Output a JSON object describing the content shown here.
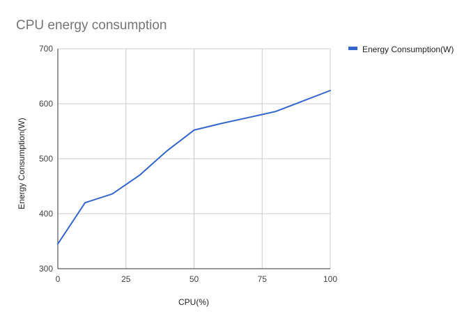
{
  "chart_data": {
    "type": "line",
    "title": "CPU energy consumption",
    "xlabel": "CPU(%)",
    "ylabel": "Energy Consumption(W)",
    "xlim": [
      0,
      100
    ],
    "ylim": [
      300,
      700
    ],
    "x_ticks": [
      0,
      25,
      50,
      75,
      100
    ],
    "y_ticks": [
      300,
      400,
      500,
      600,
      700
    ],
    "x_tick_labels": [
      "0",
      "25",
      "50",
      "75",
      "100"
    ],
    "y_tick_labels": [
      "300",
      "400",
      "500",
      "600",
      "700"
    ],
    "grid": true,
    "legend_position": "right",
    "series": [
      {
        "name": "Energy Consumption(W)",
        "color": "#3366cc",
        "x": [
          0,
          10,
          20,
          30,
          40,
          50,
          60,
          70,
          80,
          90,
          100
        ],
        "values": [
          345,
          420,
          436,
          470,
          514,
          552,
          564,
          575,
          586,
          605,
          624
        ]
      }
    ]
  }
}
